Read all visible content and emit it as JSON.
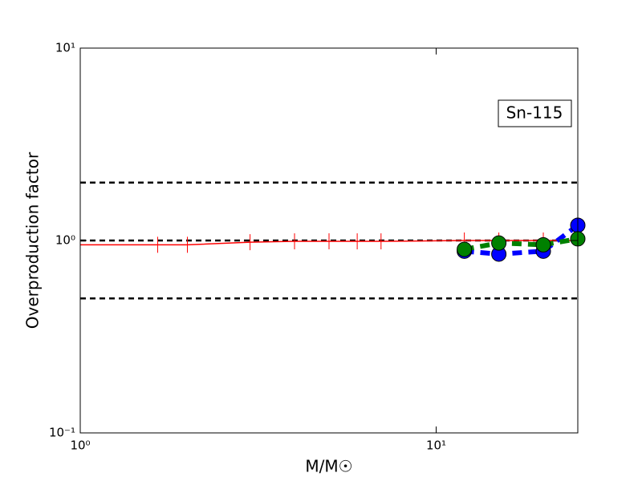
{
  "chart_data": {
    "type": "line",
    "title": null,
    "xlabel": "M/M☉",
    "ylabel": "Overproduction factor",
    "annotation": "Sn-115",
    "xscale": "log",
    "yscale": "log",
    "xlim": [
      1,
      25
    ],
    "ylim": [
      0.1,
      10
    ],
    "xticks": [
      {
        "value": 1,
        "label": "10⁰"
      },
      {
        "value": 10,
        "label": "10¹"
      }
    ],
    "yticks": [
      {
        "value": 0.1,
        "label": "10⁻¹"
      },
      {
        "value": 1,
        "label": "10⁰"
      },
      {
        "value": 10,
        "label": "10¹"
      }
    ],
    "hlines": [
      2,
      1,
      0.5
    ],
    "series": [
      {
        "color": "#ff0000",
        "linestyle": "solid",
        "marker": "|",
        "x": [
          1,
          1.65,
          2,
          3,
          4,
          5,
          6,
          7,
          12,
          15,
          20,
          25
        ],
        "values": [
          0.95,
          0.95,
          0.95,
          0.98,
          0.99,
          0.99,
          0.99,
          0.99,
          1.0,
          1.0,
          1.0,
          1.0
        ]
      },
      {
        "color": "#0000ff",
        "linestyle": "dashed",
        "marker": "o",
        "x": [
          12,
          15,
          20,
          25
        ],
        "values": [
          0.88,
          0.85,
          0.88,
          1.2
        ]
      },
      {
        "color": "#008000",
        "linestyle": "dashed",
        "marker": "o",
        "x": [
          12,
          15,
          20,
          25
        ],
        "values": [
          0.9,
          0.97,
          0.95,
          1.02
        ]
      }
    ]
  }
}
